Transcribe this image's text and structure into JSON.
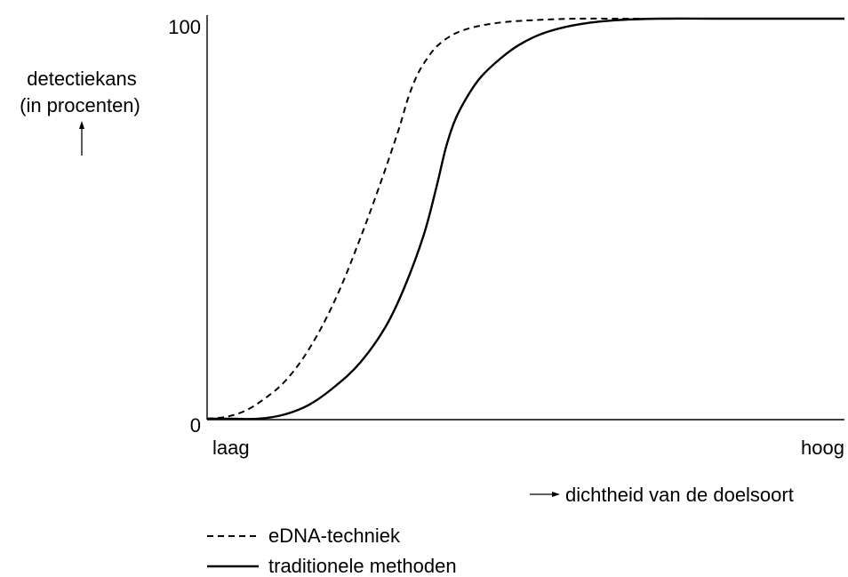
{
  "chart_data": {
    "type": "line",
    "title": "",
    "ylabel": [
      "detectiekans",
      "(in procenten)"
    ],
    "xlabel": "dichtheid van de doelsoort",
    "ylim": [
      0,
      100
    ],
    "xlim": [
      0,
      100
    ],
    "yticks": [
      "0",
      "100"
    ],
    "xticks": [
      "laag",
      "hoog"
    ],
    "grid": false,
    "legend_position": "bottom-left",
    "series": [
      {
        "name": "eDNA-techniek",
        "style": "dashed",
        "color": "#000000",
        "x": [
          0,
          3,
          6,
          9,
          12,
          15,
          18,
          21,
          24,
          27,
          30,
          31.5,
          33,
          34.5,
          36,
          38,
          40,
          43,
          47,
          52,
          58,
          65,
          72,
          80,
          90,
          100
        ],
        "y": [
          0,
          0.5,
          2,
          5,
          9,
          15,
          23,
          33,
          45,
          58,
          72,
          80,
          86,
          90,
          93,
          95.5,
          97,
          98.3,
          99.2,
          99.7,
          100,
          100,
          100,
          100,
          100,
          100
        ]
      },
      {
        "name": "traditionele methoden",
        "style": "solid",
        "color": "#000000",
        "x": [
          0,
          4,
          8,
          12,
          16,
          20,
          24,
          28,
          31,
          34,
          36,
          37.5,
          39,
          41,
          43,
          46,
          49,
          53,
          58,
          64,
          71,
          80,
          90,
          100
        ],
        "y": [
          0,
          0,
          0,
          1,
          3.5,
          8,
          14,
          23,
          33,
          46,
          58,
          68,
          75,
          81,
          85.5,
          90,
          93.5,
          96.5,
          98.5,
          99.6,
          100,
          100,
          100,
          100
        ]
      }
    ]
  }
}
